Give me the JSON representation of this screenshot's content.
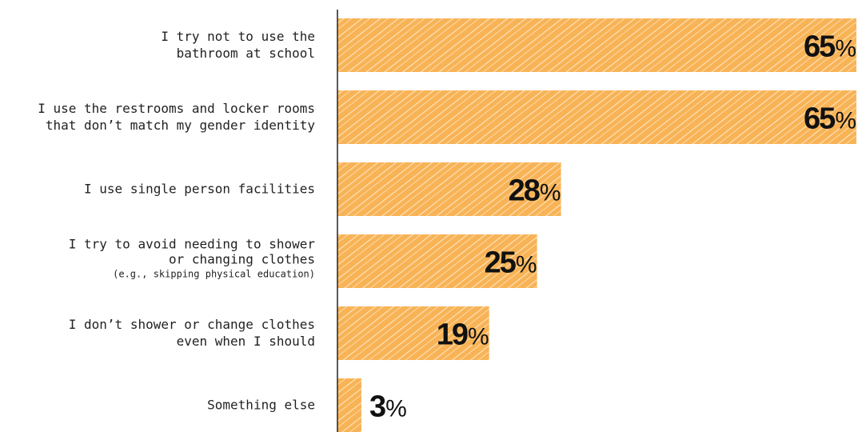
{
  "chart_data": {
    "type": "bar",
    "orientation": "horizontal",
    "categories": [
      {
        "lines": [
          "I try not to use the",
          "bathroom at school"
        ],
        "note": ""
      },
      {
        "lines": [
          "I use the restrooms and locker rooms",
          "that don’t match my gender identity"
        ],
        "note": ""
      },
      {
        "lines": [
          "I use single person facilities"
        ],
        "note": ""
      },
      {
        "lines": [
          "I try to avoid needing to shower",
          "or changing clothes"
        ],
        "note": "(e.g., skipping physical education)"
      },
      {
        "lines": [
          "I don’t shower or change clothes",
          "even when I should"
        ],
        "note": ""
      },
      {
        "lines": [
          "Something else"
        ],
        "note": ""
      }
    ],
    "values": [
      65,
      65,
      28,
      25,
      19,
      3
    ],
    "value_suffix": "%",
    "xlim": [
      0,
      65
    ],
    "grid": false,
    "bar_color": "#f8b356",
    "hatch_color": "#fde3bb",
    "label_color": "#222222",
    "value_color": "#111111",
    "axis_color": "#222222"
  }
}
